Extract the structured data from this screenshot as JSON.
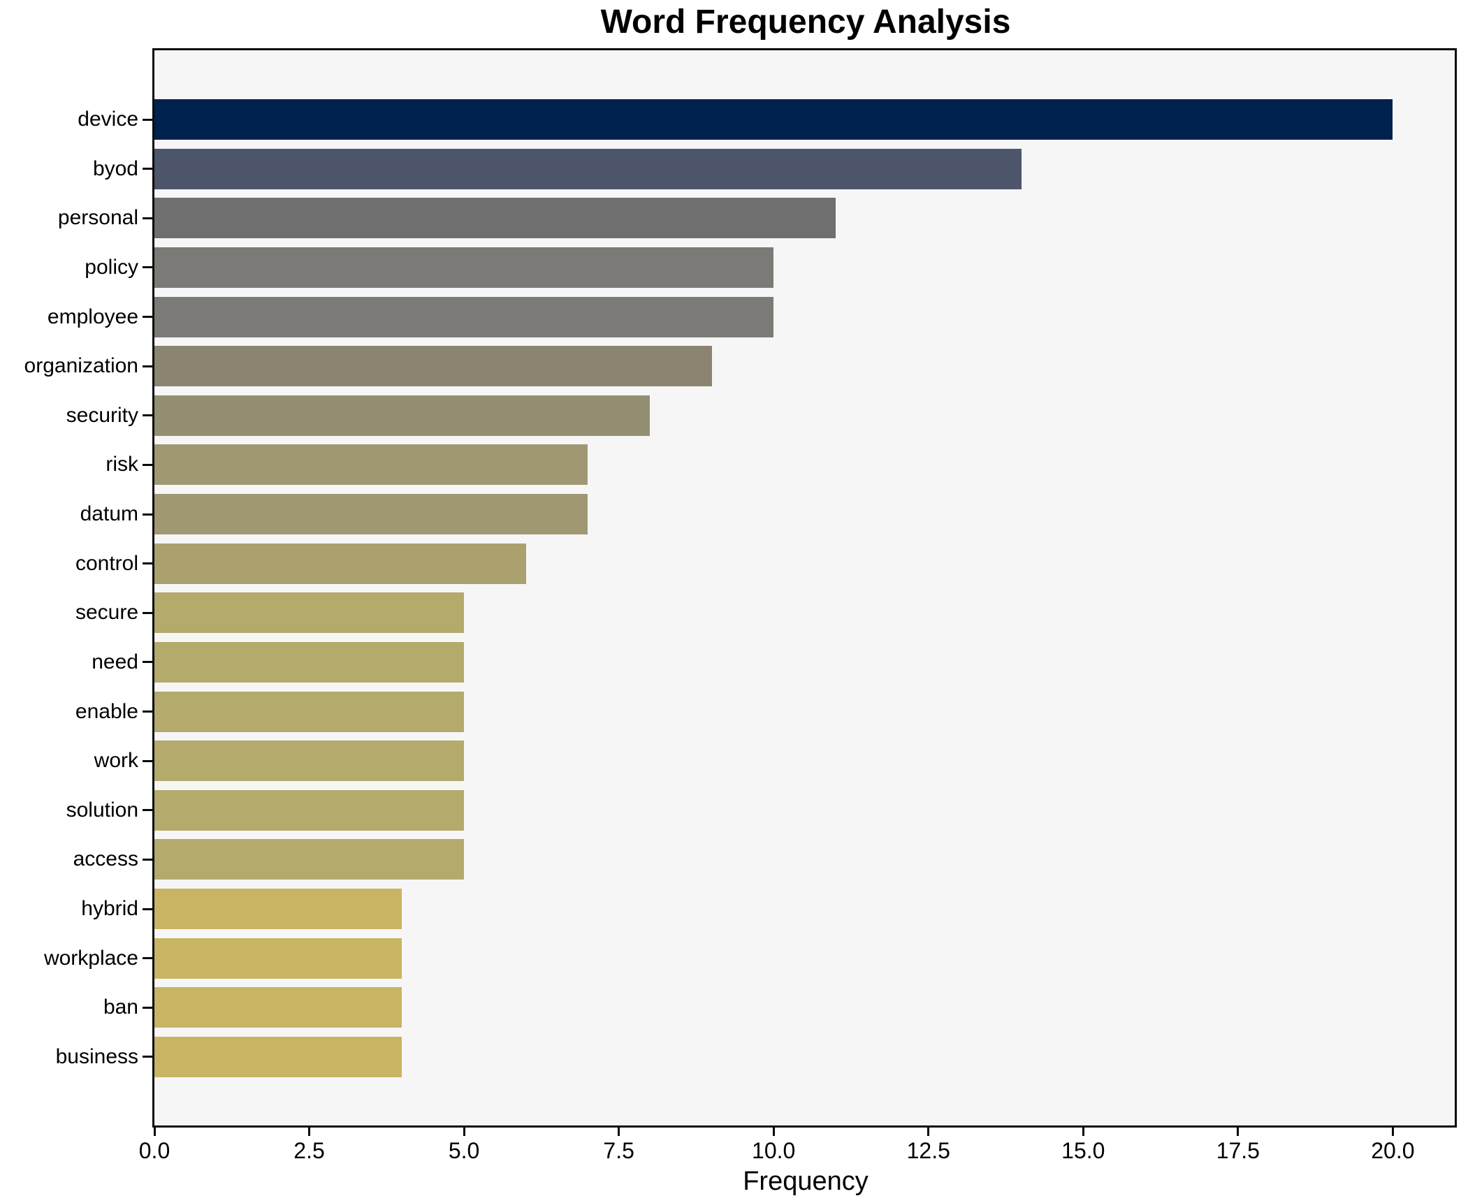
{
  "chart_data": {
    "type": "bar",
    "orientation": "horizontal",
    "title": "Word Frequency Analysis",
    "xlabel": "Frequency",
    "ylabel": "",
    "grid": false,
    "legend": null,
    "xlim": [
      0,
      21
    ],
    "xticks": [
      0,
      2.5,
      5,
      7.5,
      10,
      12.5,
      15,
      17.5,
      20
    ],
    "xtick_labels": [
      "0.0",
      "2.5",
      "5.0",
      "7.5",
      "10.0",
      "12.5",
      "15.0",
      "17.5",
      "20.0"
    ],
    "categories": [
      "device",
      "byod",
      "personal",
      "policy",
      "employee",
      "organization",
      "security",
      "risk",
      "datum",
      "control",
      "secure",
      "need",
      "enable",
      "work",
      "solution",
      "access",
      "hybrid",
      "workplace",
      "ban",
      "business"
    ],
    "values": [
      20,
      14,
      11,
      10,
      10,
      9,
      8,
      7,
      7,
      6,
      5,
      5,
      5,
      5,
      5,
      5,
      4,
      4,
      4,
      4
    ],
    "bar_colors": [
      "#00224e",
      "#4d566a",
      "#6f6f6f",
      "#7b7a76",
      "#7b7a76",
      "#8a8471",
      "#948e73",
      "#9f9873",
      "#9f9873",
      "#aba16e",
      "#b3aa6b",
      "#b3aa6b",
      "#b3aa6b",
      "#b3aa6b",
      "#b3aa6b",
      "#b3aa6b",
      "#c8b564",
      "#c8b564",
      "#c8b564",
      "#c8b564"
    ],
    "plot_bg": "#f6f6f7",
    "figure_bg": "#ffffff",
    "axis_color": "#0a0a0a"
  }
}
